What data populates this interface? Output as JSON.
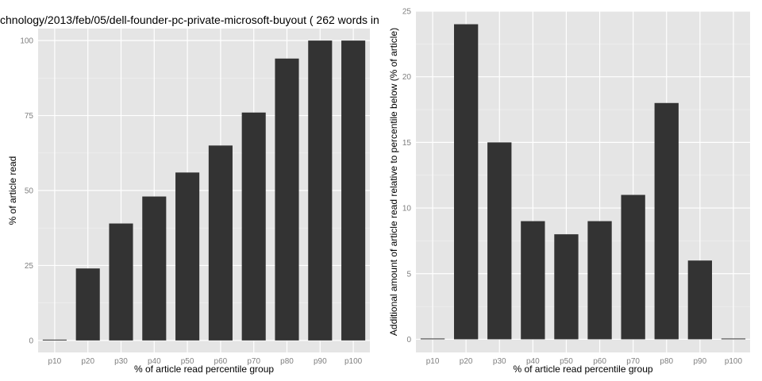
{
  "chart_data": [
    {
      "type": "bar",
      "title": "chnology/2013/feb/05/dell-founder-pc-private-microsoft-buyout ( 262 words in",
      "xlabel": "% of article read percentile group",
      "ylabel": "% of article read",
      "categories": [
        "p10",
        "p20",
        "p30",
        "p40",
        "p50",
        "p60",
        "p70",
        "p80",
        "p90",
        "p100"
      ],
      "values": [
        0,
        24,
        39,
        48,
        56,
        65,
        76,
        94,
        100,
        100
      ],
      "ylim": [
        -4,
        104
      ],
      "yticks": [
        "0",
        "25",
        "50",
        "75",
        "100"
      ],
      "grid": true,
      "bar_color": "#333333",
      "panel_color": "#e5e5e5",
      "grid_color": "#ffffff"
    },
    {
      "type": "bar",
      "title": "",
      "xlabel": "% of article read percentile group",
      "ylabel": "Additional amount of article read relative to percentile below (% of article)",
      "categories": [
        "p10",
        "p20",
        "p30",
        "p40",
        "p50",
        "p60",
        "p70",
        "p80",
        "p90",
        "p100"
      ],
      "values": [
        0,
        24,
        15,
        9,
        8,
        9,
        11,
        18,
        6,
        0
      ],
      "ylim": [
        -1,
        25
      ],
      "yticks": [
        "0",
        "5",
        "10",
        "15",
        "20",
        "25"
      ],
      "grid": true,
      "bar_color": "#333333",
      "panel_color": "#e5e5e5",
      "grid_color": "#ffffff"
    }
  ]
}
